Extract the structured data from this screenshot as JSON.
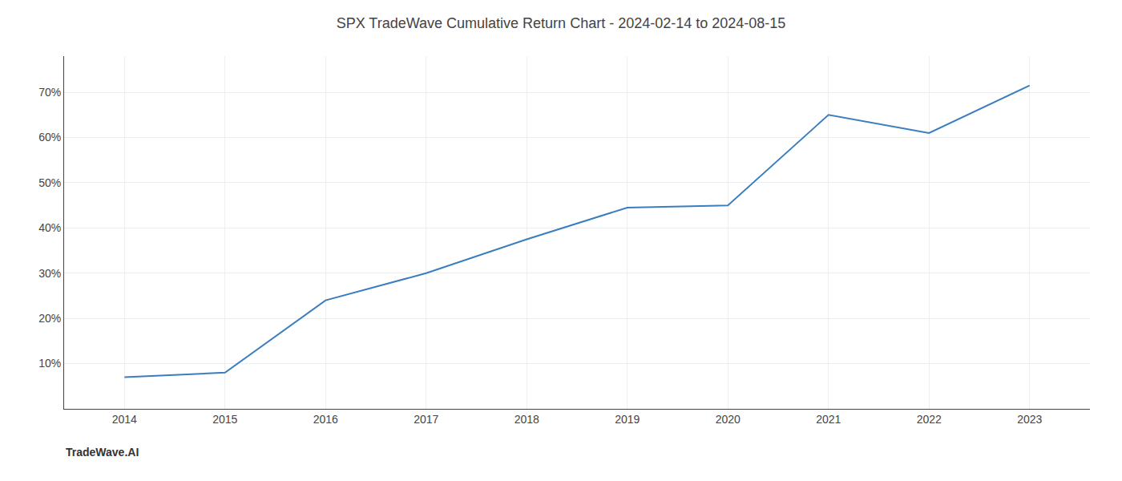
{
  "chart_data": {
    "type": "line",
    "title": "SPX TradeWave Cumulative Return Chart - 2024-02-14 to 2024-08-15",
    "annotations": [
      "TradeWave.AI"
    ],
    "x": [
      2014,
      2015,
      2016,
      2017,
      2018,
      2019,
      2020,
      2021,
      2022,
      2023
    ],
    "values": [
      7.0,
      8.0,
      24.0,
      30.0,
      37.5,
      44.5,
      45.0,
      65.0,
      61.0,
      71.5
    ],
    "color": "#3a7ebf",
    "xlim": [
      2013.4,
      2023.6
    ],
    "xticks": [
      2014,
      2015,
      2016,
      2017,
      2018,
      2019,
      2020,
      2021,
      2022,
      2023
    ],
    "ylim": [
      0,
      78
    ],
    "yticks": [
      {
        "value": 10,
        "label": "10%"
      },
      {
        "value": 20,
        "label": "20%"
      },
      {
        "value": 30,
        "label": "30%"
      },
      {
        "value": 40,
        "label": "40%"
      },
      {
        "value": 50,
        "label": "50%"
      },
      {
        "value": 60,
        "label": "60%"
      },
      {
        "value": 70,
        "label": "70%"
      }
    ],
    "grid": true
  }
}
